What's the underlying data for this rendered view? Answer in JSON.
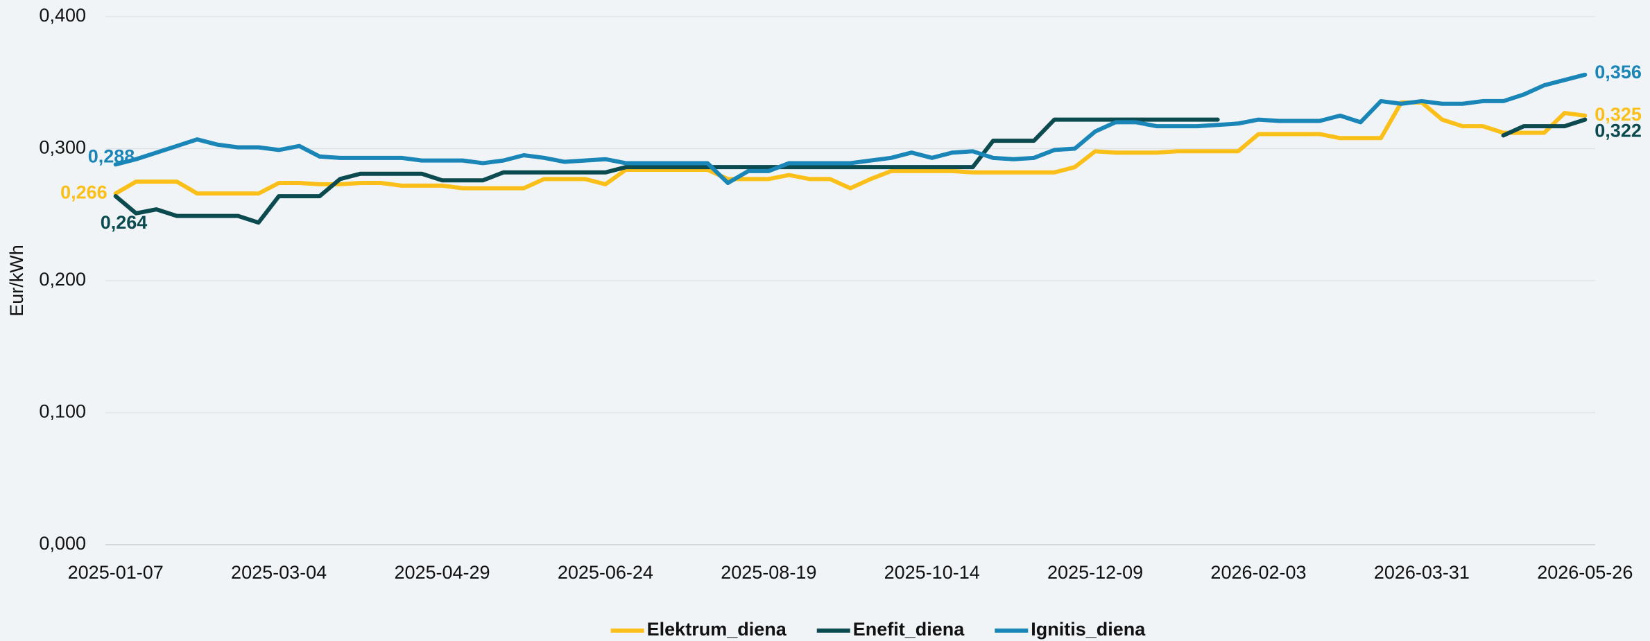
{
  "chart_data": {
    "type": "line",
    "y_label": "Eur/kWh",
    "categories": [
      "2025-01-07",
      null,
      null,
      null,
      null,
      null,
      null,
      null,
      "2025-03-04",
      null,
      null,
      null,
      null,
      null,
      null,
      null,
      "2025-04-29",
      null,
      null,
      null,
      null,
      null,
      null,
      null,
      "2025-06-24",
      null,
      null,
      null,
      null,
      null,
      null,
      null,
      "2025-08-19",
      null,
      null,
      null,
      null,
      null,
      null,
      null,
      "2025-10-14",
      null,
      null,
      null,
      null,
      null,
      null,
      null,
      "2025-12-09",
      null,
      null,
      null,
      null,
      null,
      null,
      null,
      "2026-02-03",
      null,
      null,
      null,
      null,
      null,
      null,
      null,
      "2026-03-31",
      null,
      null,
      null,
      null,
      null,
      null,
      null,
      "2026-05-26"
    ],
    "series": [
      {
        "name": "Elektrum_diena",
        "color": "#fbbf1a",
        "values": [
          0.266,
          0.275,
          0.275,
          0.275,
          0.266,
          0.266,
          0.266,
          0.266,
          0.274,
          0.274,
          0.273,
          0.273,
          0.274,
          0.274,
          0.272,
          0.272,
          0.272,
          0.27,
          0.27,
          0.27,
          0.27,
          0.277,
          0.277,
          0.277,
          0.273,
          0.284,
          0.284,
          0.284,
          0.284,
          0.284,
          0.277,
          0.277,
          0.277,
          0.28,
          0.277,
          0.277,
          0.27,
          0.277,
          0.283,
          0.283,
          0.283,
          0.283,
          0.282,
          0.282,
          0.282,
          0.282,
          0.282,
          0.286,
          0.298,
          0.297,
          0.297,
          0.297,
          0.298,
          0.298,
          0.298,
          0.298,
          0.311,
          0.311,
          0.311,
          0.311,
          0.308,
          0.308,
          0.308,
          0.335,
          0.335,
          0.322,
          0.317,
          0.317,
          0.312,
          0.312,
          0.312,
          0.327,
          0.325
        ],
        "value_labels": [
          "0,266",
          null,
          null,
          null,
          null,
          null,
          null,
          null,
          null,
          null,
          null,
          null,
          null,
          null,
          null,
          null,
          null,
          null,
          null,
          null,
          null,
          null,
          null,
          null,
          null,
          null,
          null,
          null,
          null,
          null,
          null,
          null,
          null,
          null,
          null,
          null,
          null,
          null,
          null,
          null,
          null,
          null,
          null,
          null,
          null,
          null,
          null,
          null,
          null,
          null,
          null,
          null,
          null,
          null,
          null,
          null,
          null,
          null,
          null,
          null,
          null,
          null,
          null,
          null,
          null,
          null,
          null,
          null,
          null,
          null,
          null,
          null,
          "0,325"
        ]
      },
      {
        "name": "Enefit_diena",
        "color": "#0b4a4f",
        "values": [
          0.264,
          0.251,
          0.254,
          0.249,
          0.249,
          0.249,
          0.249,
          0.244,
          0.264,
          0.264,
          0.264,
          0.277,
          0.281,
          0.281,
          0.281,
          0.281,
          0.276,
          0.276,
          0.276,
          0.282,
          0.282,
          0.282,
          0.282,
          0.282,
          0.282,
          0.286,
          0.286,
          0.286,
          0.286,
          0.286,
          0.286,
          0.286,
          0.286,
          0.286,
          0.286,
          0.286,
          0.286,
          0.286,
          0.286,
          0.286,
          0.286,
          0.286,
          0.286,
          0.306,
          0.306,
          0.306,
          0.322,
          0.322,
          0.322,
          0.322,
          0.322,
          0.322,
          0.322,
          0.322,
          0.322,
          null,
          null,
          null,
          null,
          null,
          null,
          null,
          null,
          null,
          null,
          null,
          null,
          null,
          0.31,
          0.317,
          0.317,
          0.317,
          0.322
        ],
        "value_labels": [
          "0,264",
          null,
          null,
          null,
          null,
          null,
          null,
          null,
          null,
          null,
          null,
          null,
          null,
          null,
          null,
          null,
          null,
          null,
          null,
          null,
          null,
          null,
          null,
          null,
          null,
          null,
          null,
          null,
          null,
          null,
          null,
          null,
          null,
          null,
          null,
          null,
          null,
          null,
          null,
          null,
          null,
          null,
          null,
          null,
          null,
          null,
          null,
          null,
          null,
          null,
          null,
          null,
          null,
          null,
          null,
          null,
          null,
          null,
          null,
          null,
          null,
          null,
          null,
          null,
          null,
          null,
          null,
          null,
          null,
          null,
          null,
          null,
          "0,322"
        ]
      },
      {
        "name": "Ignitis_diena",
        "color": "#1a86b8",
        "values": [
          0.288,
          0.292,
          0.297,
          0.302,
          0.307,
          0.303,
          0.301,
          0.301,
          0.299,
          0.302,
          0.294,
          0.293,
          0.293,
          0.293,
          0.293,
          0.291,
          0.291,
          0.291,
          0.289,
          0.291,
          0.295,
          0.293,
          0.29,
          0.291,
          0.292,
          0.289,
          0.289,
          0.289,
          0.289,
          0.289,
          0.274,
          0.283,
          0.283,
          0.289,
          0.289,
          0.289,
          0.289,
          0.291,
          0.293,
          0.297,
          0.293,
          0.297,
          0.298,
          0.293,
          0.292,
          0.293,
          0.299,
          0.3,
          0.313,
          0.32,
          0.32,
          0.317,
          0.317,
          0.317,
          0.318,
          0.319,
          0.322,
          0.321,
          0.321,
          0.321,
          0.325,
          0.32,
          0.336,
          0.334,
          0.336,
          0.334,
          0.334,
          0.336,
          0.336,
          0.341,
          0.348,
          0.352,
          0.356
        ],
        "value_labels": [
          "0,288",
          null,
          null,
          null,
          null,
          null,
          null,
          null,
          null,
          null,
          null,
          null,
          null,
          null,
          null,
          null,
          null,
          null,
          null,
          null,
          null,
          null,
          null,
          null,
          null,
          null,
          null,
          null,
          null,
          null,
          null,
          null,
          null,
          null,
          null,
          null,
          null,
          null,
          null,
          null,
          null,
          null,
          null,
          null,
          null,
          null,
          null,
          null,
          null,
          null,
          null,
          null,
          null,
          null,
          null,
          null,
          null,
          null,
          null,
          null,
          null,
          null,
          null,
          null,
          null,
          null,
          null,
          null,
          null,
          null,
          null,
          null,
          "0,356"
        ]
      }
    ],
    "ylim": [
      0,
      0.4
    ],
    "yticks": [
      {
        "value": 0,
        "label": "0,000"
      },
      {
        "value": 0.1,
        "label": "0,100"
      },
      {
        "value": 0.2,
        "label": "0,200"
      },
      {
        "value": 0.3,
        "label": "0,300"
      },
      {
        "value": 0.4,
        "label": "0,400"
      }
    ],
    "grid": true,
    "legend": "bottom"
  }
}
